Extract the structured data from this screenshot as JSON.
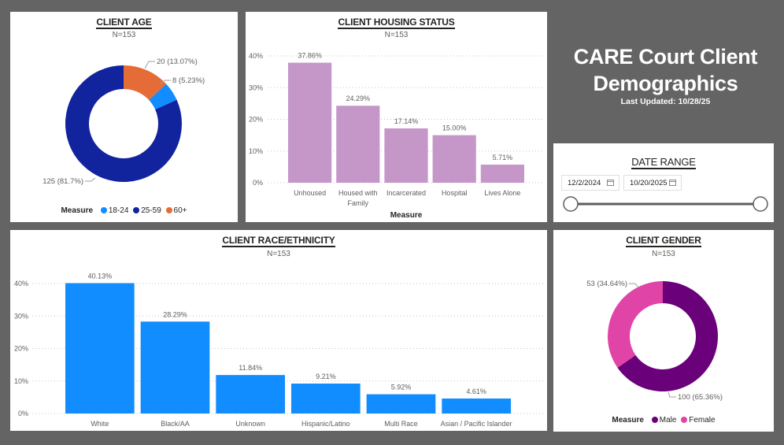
{
  "header": {
    "title_line1": "CARE Court Client",
    "title_line2": "Demographics",
    "last_updated": "Last Updated: 10/28/25"
  },
  "date_range": {
    "title": "DATE RANGE",
    "start_date": "12/2/2024",
    "end_date": "10/20/2025",
    "slider_start_fraction": 0,
    "slider_end_fraction": 1
  },
  "chart_data": [
    {
      "id": "age",
      "type": "pie",
      "donut": true,
      "title": "CLIENT AGE",
      "subtitle": "N=153",
      "legend_title": "Measure",
      "legend_position": "bottom",
      "slices": [
        {
          "label": "60+",
          "value": 20,
          "percent": "13.07%",
          "color": "#E66C37",
          "data_label": "20 (13.07%)"
        },
        {
          "label": "18-24",
          "value": 8,
          "percent": "5.23%",
          "color": "#118DFF",
          "data_label": "8 (5.23%)"
        },
        {
          "label": "25-59",
          "value": 125,
          "percent": "81.7%",
          "color": "#12239E",
          "data_label": "125 (81.7%)"
        }
      ],
      "legend": [
        {
          "label": "18-24",
          "color": "#118DFF"
        },
        {
          "label": "25-59",
          "color": "#12239E"
        },
        {
          "label": "60+",
          "color": "#E66C37"
        }
      ]
    },
    {
      "id": "housing",
      "type": "bar",
      "title": "CLIENT HOUSING STATUS",
      "subtitle": "N=153",
      "xlabel": "Measure",
      "ylabel": "",
      "ylim": [
        0,
        40
      ],
      "yticks": [
        "0%",
        "10%",
        "20%",
        "30%",
        "40%"
      ],
      "grid": true,
      "color": "#C597C9",
      "categories": [
        "Unhoused",
        "Housed with Family",
        "Incarcerated",
        "Hospital",
        "Lives Alone"
      ],
      "category_lines": [
        [
          "Unhoused"
        ],
        [
          "Housed with",
          "Family"
        ],
        [
          "Incarcerated"
        ],
        [
          "Hospital"
        ],
        [
          "Lives Alone"
        ]
      ],
      "values": [
        37.86,
        24.29,
        17.14,
        15.0,
        5.71
      ],
      "data_labels": [
        "37.86%",
        "24.29%",
        "17.14%",
        "15.00%",
        "5.71%"
      ]
    },
    {
      "id": "race",
      "type": "bar",
      "title": "CLIENT RACE/ETHNICITY",
      "subtitle": "N=153",
      "xlabel": "",
      "ylabel": "",
      "ylim": [
        0,
        40
      ],
      "yticks": [
        "0%",
        "10%",
        "20%",
        "30%",
        "40%"
      ],
      "grid": true,
      "color": "#118DFF",
      "categories": [
        "White",
        "Black/AA",
        "Unknown",
        "Hispanic/Latino",
        "Multi Race",
        "Asian / Pacific Islander"
      ],
      "values": [
        40.13,
        28.29,
        11.84,
        9.21,
        5.92,
        4.61
      ],
      "data_labels": [
        "40.13%",
        "28.29%",
        "11.84%",
        "9.21%",
        "5.92%",
        "4.61%"
      ]
    },
    {
      "id": "gender",
      "type": "pie",
      "donut": true,
      "title": "CLIENT GENDER",
      "subtitle": "N=153",
      "legend_title": "Measure",
      "legend_position": "bottom",
      "slices": [
        {
          "label": "Male",
          "value": 100,
          "percent": "65.36%",
          "color": "#6B007B",
          "data_label": "100 (65.36%)"
        },
        {
          "label": "Female",
          "value": 53,
          "percent": "34.64%",
          "color": "#E044A7",
          "data_label": "53 (34.64%)"
        }
      ],
      "legend": [
        {
          "label": "Male",
          "color": "#6B007B"
        },
        {
          "label": "Female",
          "color": "#E044A7"
        }
      ]
    }
  ]
}
